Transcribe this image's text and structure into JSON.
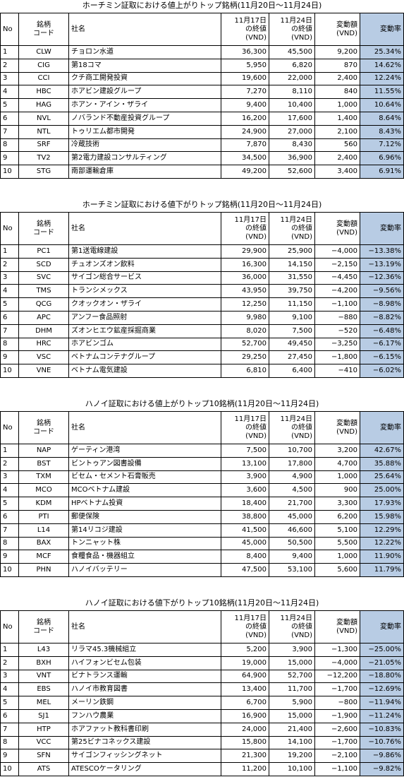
{
  "sections": [
    {
      "title": "ホーチミン証取における値上がりトップ銘柄(11月20日～11月24日)",
      "header": [
        "No",
        "銘柄\nコード",
        "社名",
        "11月17日\nの終値\n(VND)",
        "11月24日\nの終値\n(VND)",
        "変動額\n(VND)",
        "変動率"
      ],
      "rows": [
        [
          "1",
          "CLW",
          "チョロン水道",
          "36,300",
          "45,500",
          "9,200",
          "25.34%"
        ],
        [
          "2",
          "CIG",
          "第18コマ",
          "5,950",
          "6,820",
          "870",
          "14.62%"
        ],
        [
          "3",
          "CCI",
          "クチ商工開発投資",
          "19,600",
          "22,000",
          "2,400",
          "12.24%"
        ],
        [
          "4",
          "HBC",
          "ホアビン建設グループ",
          "7,270",
          "8,110",
          "840",
          "11.55%"
        ],
        [
          "5",
          "HAG",
          "ホアン・アイン・ザライ",
          "9,400",
          "10,400",
          "1,000",
          "10.64%"
        ],
        [
          "6",
          "NVL",
          "ノバランド不動産投資グループ",
          "16,200",
          "17,600",
          "1,400",
          "8.64%"
        ],
        [
          "7",
          "NTL",
          "トゥリエム都市開発",
          "24,900",
          "27,000",
          "2,100",
          "8.43%"
        ],
        [
          "8",
          "SRF",
          "冷蔵技術",
          "7,870",
          "8,430",
          "560",
          "7.12%"
        ],
        [
          "9",
          "TV2",
          "第2電力建設コンサルティング",
          "34,500",
          "36,900",
          "2,400",
          "6.96%"
        ],
        [
          "10",
          "STG",
          "南部運輸倉庫",
          "49,200",
          "52,600",
          "3,400",
          "6.91%"
        ]
      ]
    },
    {
      "title": "ホーチミン証取における値下がりトップ銘柄(11月20日～11月24日)",
      "header": [
        "No",
        "銘柄\nコード",
        "社名",
        "11月17日\nの終値\n(VND)",
        "11月24日\nの終値\n(VND)",
        "変動額\n(VND)",
        "変動率"
      ],
      "rows": [
        [
          "1",
          "PC1",
          "第1送電線建設",
          "29,900",
          "25,900",
          "−4,000",
          "−13.38%"
        ],
        [
          "2",
          "SCD",
          "チュオンズオン飲料",
          "16,300",
          "14,150",
          "−2,150",
          "−13.19%"
        ],
        [
          "3",
          "SVC",
          "サイゴン総合サービス",
          "36,000",
          "31,550",
          "−4,450",
          "−12.36%"
        ],
        [
          "4",
          "TMS",
          "トランシメックス",
          "43,950",
          "39,750",
          "−4,200",
          "−9.56%"
        ],
        [
          "5",
          "QCG",
          "クオックオン・ザライ",
          "12,250",
          "11,150",
          "−1,100",
          "−8.98%"
        ],
        [
          "6",
          "APC",
          "アンフー食品照射",
          "9,980",
          "9,100",
          "−880",
          "−8.82%"
        ],
        [
          "7",
          "DHM",
          "ズオンヒエウ鉱産採掘商業",
          "8,020",
          "7,500",
          "−520",
          "−6.48%"
        ],
        [
          "8",
          "HRC",
          "ホアビンゴム",
          "52,700",
          "49,450",
          "−3,250",
          "−6.17%"
        ],
        [
          "9",
          "VSC",
          "ベトナムコンテナグループ",
          "29,250",
          "27,450",
          "−1,800",
          "−6.15%"
        ],
        [
          "10",
          "VNE",
          "ベトナム電気建設",
          "6,810",
          "6,400",
          "−410",
          "−6.02%"
        ]
      ]
    },
    {
      "title": "ハノイ証取における値上がりトップ10銘柄(11月20日～11月24日)",
      "header": [
        "No",
        "銘柄\nコード",
        "社名",
        "11月17日\nの終値\n(VND)",
        "11月24日\nの終値\n(VND)",
        "変動額\n(VND)",
        "変動率"
      ],
      "rows": [
        [
          "1",
          "NAP",
          "ゲーティン港湾",
          "7,500",
          "10,700",
          "3,200",
          "42.67%"
        ],
        [
          "2",
          "BST",
          "ビントゥアン図書設備",
          "13,100",
          "17,800",
          "4,700",
          "35.88%"
        ],
        [
          "3",
          "TXM",
          "ビセム・セメント石膏販売",
          "3,900",
          "4,900",
          "1,000",
          "25.64%"
        ],
        [
          "4",
          "MCO",
          "MCOベトナム建設",
          "3,600",
          "4,500",
          "900",
          "25.00%"
        ],
        [
          "5",
          "KDM",
          "HPベトナム投資",
          "18,400",
          "21,700",
          "3,300",
          "17.93%"
        ],
        [
          "6",
          "PTI",
          "郵便保険",
          "38,800",
          "45,000",
          "6,200",
          "15.98%"
        ],
        [
          "7",
          "L14",
          "第14リコジ建設",
          "41,500",
          "46,600",
          "5,100",
          "12.29%"
        ],
        [
          "8",
          "BAX",
          "トンニャット株",
          "45,000",
          "50,500",
          "5,500",
          "12.22%"
        ],
        [
          "9",
          "MCF",
          "食糧食品・機器組立",
          "8,400",
          "9,400",
          "1,000",
          "11.90%"
        ],
        [
          "10",
          "PHN",
          "ハノイバッテリー",
          "47,500",
          "53,100",
          "5,600",
          "11.79%"
        ]
      ]
    },
    {
      "title": "ハノイ証取における値下がりトップ10銘柄(11月20日～11月24日)",
      "header": [
        "No",
        "銘柄\nコード",
        "社名",
        "11月17日\nの終値\n(VND)",
        "11月24日\nの終値\n(VND)",
        "変動額\n(VND)",
        "変動率"
      ],
      "rows": [
        [
          "1",
          "L43",
          "リラマ45.3機械組立",
          "5,200",
          "3,900",
          "−1,300",
          "−25.00%"
        ],
        [
          "2",
          "BXH",
          "ハイフォンビセム包装",
          "19,000",
          "15,000",
          "−4,000",
          "−21.05%"
        ],
        [
          "3",
          "VNT",
          "ビナトランス運輸",
          "64,900",
          "52,700",
          "−12,200",
          "−18.80%"
        ],
        [
          "4",
          "EBS",
          "ハノイ市教育図書",
          "13,400",
          "11,700",
          "−1,700",
          "−12.69%"
        ],
        [
          "5",
          "MEL",
          "メーリン鉄鋼",
          "6,700",
          "5,900",
          "−800",
          "−11.94%"
        ],
        [
          "6",
          "SJ1",
          "フンハウ農業",
          "16,900",
          "15,000",
          "−1,900",
          "−11.24%"
        ],
        [
          "7",
          "HTP",
          "ホアファット教科書印刷",
          "24,000",
          "21,400",
          "−2,600",
          "−10.83%"
        ],
        [
          "8",
          "VCC",
          "第25ビナコネックス建設",
          "15,800",
          "14,100",
          "−1,700",
          "−10.76%"
        ],
        [
          "9",
          "SFN",
          "サイゴンフィッシングネット",
          "21,300",
          "19,200",
          "−2,100",
          "−9.86%"
        ],
        [
          "10",
          "ATS",
          "ATESCOケータリング",
          "11,200",
          "10,100",
          "−1,100",
          "−9.82%"
        ]
      ]
    }
  ]
}
